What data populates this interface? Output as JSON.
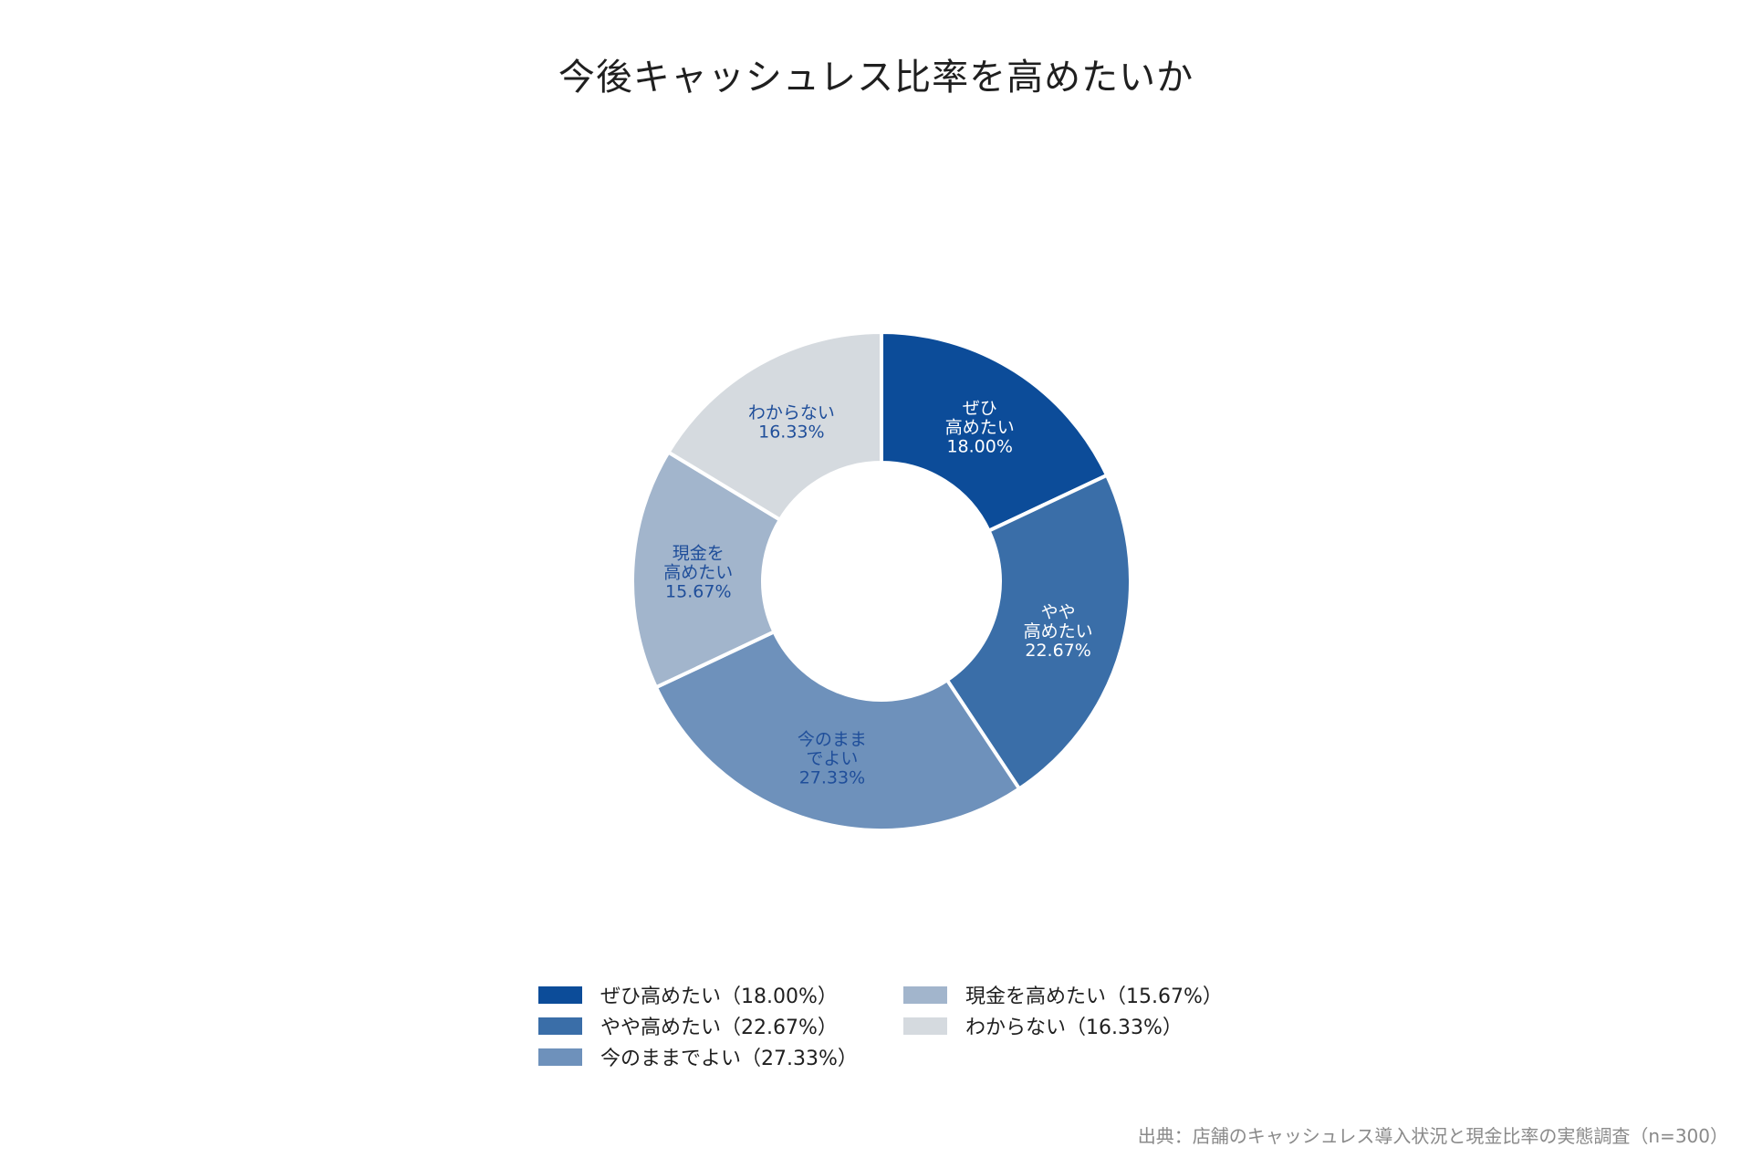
{
  "title": "今後キャッシュレス比率を高めたいか",
  "chart_data": {
    "type": "pie",
    "style": "donut",
    "title": "今後キャッシュレス比率を高めたいか",
    "categories": [
      "ぜひ高めたい",
      "やや高めたい",
      "今のままでよい",
      "現金を高めたい",
      "わからない"
    ],
    "values": [
      18.0,
      22.67,
      27.33,
      15.67,
      16.33
    ],
    "unit": "%",
    "slice_labels": [
      [
        "ぜひ",
        "高めたい",
        "18.00%"
      ],
      [
        "やや",
        "高めたい",
        "22.67%"
      ],
      [
        "今のまま",
        "でよい",
        "27.33%"
      ],
      [
        "現金を",
        "高めたい",
        "15.67%"
      ],
      [
        "わからない",
        "16.33%"
      ]
    ],
    "colors": [
      "#0c4c99",
      "#3a6ea8",
      "#6e91bb",
      "#a2b5cc",
      "#d5dadf"
    ],
    "label_colors": [
      "#ffffff",
      "#ffffff",
      "#1f4e9a",
      "#1f4e9a",
      "#1f4e9a"
    ],
    "legend": {
      "position": "bottom",
      "items": [
        "ぜひ高めたい（18.00%）",
        "やや高めたい（22.67%）",
        "今のままでよい（27.33%）",
        "現金を高めたい（15.67%）",
        "わからない（16.33%）"
      ]
    }
  },
  "source": "出典：店舗のキャッシュレス導入状況と現金比率の実態調査（n=300）"
}
